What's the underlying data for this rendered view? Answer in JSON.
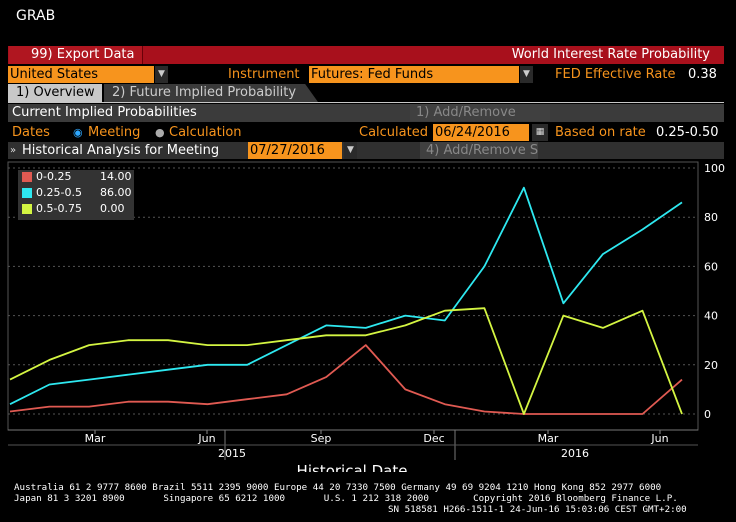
{
  "header": {
    "title": "GRAB"
  },
  "toolbar": {
    "export_label": "99) Export Data",
    "window_title": "World Interest Rate Probability"
  },
  "row1": {
    "country": "United States",
    "instrument_label": "Instrument",
    "instrument_value": "Futures: Fed Funds",
    "fed_rate_label": "FED Effective Rate",
    "fed_rate_value": "0.38"
  },
  "tabs": [
    {
      "label": "1) Overview"
    },
    {
      "label": "2) Future Implied Probability"
    }
  ],
  "current": {
    "title": "Current Implied Probabilities",
    "add_remove": "1) Add/Remove",
    "dates_label": "Dates",
    "opt_meeting": "Meeting",
    "opt_calc": "Calculation",
    "calculated_label": "Calculated",
    "calculated_value": "06/24/2016",
    "based_label": "Based on rate",
    "based_value": "0.25-0.50"
  },
  "historical": {
    "title": "Historical Analysis for Meeting",
    "meeting_date": "07/27/2016",
    "add_remove": "4) Add/Remove S"
  },
  "colors": {
    "red": "#e05a52",
    "cyan": "#2ee8f0",
    "yellow": "#d4f542",
    "orange": "#f7941d"
  },
  "chart_data": {
    "type": "line",
    "xlabel": "Historical Date",
    "x_ticks": [
      "Mar",
      "Jun",
      "Sep",
      "Dec",
      "Mar",
      "Jun"
    ],
    "year_labels": [
      "2015",
      "2016"
    ],
    "ylim": [
      0,
      100
    ],
    "y_ticks": [
      0,
      20,
      40,
      60,
      80,
      100
    ],
    "legend": [
      {
        "name": "0-0.25",
        "value": "14.00"
      },
      {
        "name": "0.25-0.5",
        "value": "86.00"
      },
      {
        "name": "0.5-0.75",
        "value": "0.00"
      }
    ],
    "x": [
      "2015-01",
      "2015-02",
      "2015-03",
      "2015-04",
      "2015-05",
      "2015-06",
      "2015-07",
      "2015-08",
      "2015-09",
      "2015-10",
      "2015-11",
      "2015-12",
      "2016-01",
      "2016-02",
      "2016-03",
      "2016-04",
      "2016-05",
      "2016-06"
    ],
    "series": [
      {
        "name": "0-0.25",
        "values": [
          1,
          3,
          3,
          5,
          5,
          4,
          6,
          8,
          15,
          28,
          10,
          4,
          1,
          0,
          0,
          0,
          0,
          14
        ]
      },
      {
        "name": "0.25-0.5",
        "values": [
          4,
          12,
          14,
          16,
          18,
          20,
          20,
          28,
          36,
          35,
          40,
          38,
          60,
          92,
          45,
          65,
          75,
          86
        ]
      },
      {
        "name": "0.5-0.75",
        "values": [
          14,
          22,
          28,
          30,
          30,
          28,
          28,
          30,
          32,
          32,
          36,
          42,
          43,
          0,
          40,
          35,
          42,
          0
        ]
      }
    ]
  },
  "footer": {
    "line1": "Australia 61 2 9777 8600 Brazil 5511 2395 9000 Europe 44 20 7330 7500 Germany 49 69 9204 1210 Hong Kong 852 2977 6000",
    "line2": "Japan 81 3 3201 8900       Singapore 65 6212 1000       U.S. 1 212 318 2000        Copyright 2016 Bloomberg Finance L.P.",
    "line3": "SN 518581 H266-1511-1 24-Jun-16 15:03:06 CEST GMT+2:00"
  }
}
